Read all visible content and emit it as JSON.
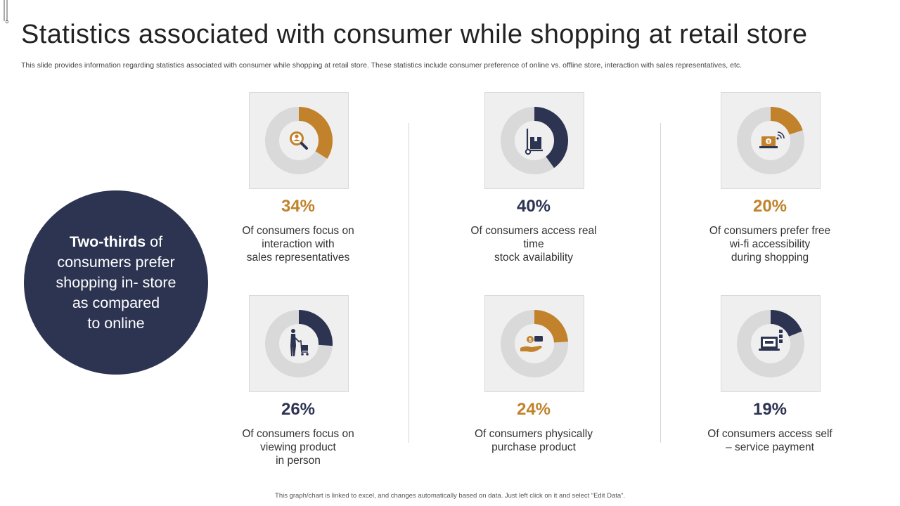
{
  "title": "Statistics associated with consumer while shopping at retail store",
  "subtitle": "This slide provides information regarding statistics associated with consumer while shopping at retail store. These statistics include consumer preference of online vs. offline store, interaction with sales representatives, etc.",
  "highlight": {
    "bold": "Two-thirds",
    "rest_line1": "of",
    "line2": "consumers prefer",
    "line3": "shopping in- store",
    "line4": "as compared",
    "line5": "to online"
  },
  "colors": {
    "navy": "#2d3452",
    "orange": "#c1822b",
    "track": "#d9d9d9"
  },
  "stats": [
    {
      "value": 34,
      "label": "34%",
      "color": "orange",
      "icon": "search-user-icon",
      "lines": [
        "Of consumers focus on",
        "interaction with",
        "sales representatives"
      ]
    },
    {
      "value": 40,
      "label": "40%",
      "color": "navy",
      "icon": "hand-truck-icon",
      "lines": [
        "Of consumers access real",
        "time",
        "stock availability"
      ]
    },
    {
      "value": 20,
      "label": "20%",
      "color": "orange",
      "icon": "laptop-wifi-icon",
      "lines": [
        "Of consumers prefer free",
        "wi-fi accessibility",
        "during shopping"
      ]
    },
    {
      "value": 26,
      "label": "26%",
      "color": "navy",
      "icon": "shopper-cart-icon",
      "lines": [
        "Of consumers focus on",
        "viewing product",
        "in person"
      ]
    },
    {
      "value": 24,
      "label": "24%",
      "color": "orange",
      "icon": "hand-money-icon",
      "lines": [
        "Of consumers physically",
        "purchase product",
        ""
      ]
    },
    {
      "value": 19,
      "label": "19%",
      "color": "navy",
      "icon": "laptop-payment-icon",
      "lines": [
        "Of consumers access self",
        "– service payment",
        ""
      ]
    }
  ],
  "chart_data": {
    "type": "pie",
    "categories": [
      "Of consumers focus on interaction with sales representatives",
      "Of consumers access real time stock availability",
      "Of consumers prefer free wi-fi accessibility during shopping",
      "Of consumers focus on viewing product in person",
      "Of consumers physically purchase product",
      "Of consumers access self – service payment"
    ],
    "values": [
      34,
      40,
      20,
      26,
      24,
      19
    ]
  },
  "footer": "This graph/chart is linked to excel, and changes automatically based on data. Just left click on it and select “Edit Data”."
}
